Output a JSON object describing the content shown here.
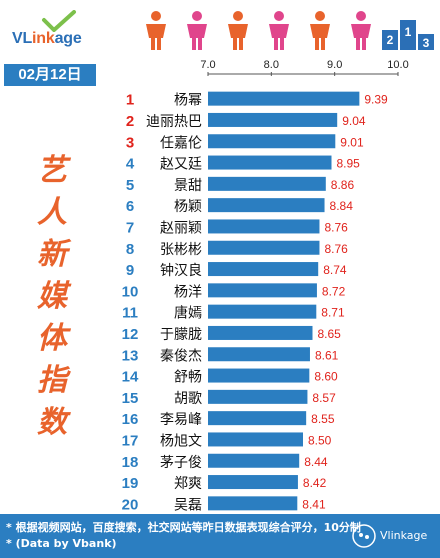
{
  "brand": {
    "name": "VLinkage"
  },
  "header": {
    "date": "02月12日"
  },
  "side_title": [
    "艺",
    "人",
    "新",
    "媒",
    "体",
    "指",
    "数"
  ],
  "footer": {
    "note1": "* 根据视频网站，百度搜索，社交网站等昨日数据表现综合评分，10分制",
    "note2": "* (Data by Vbank)"
  },
  "watermark": {
    "text": "Vlinkage"
  },
  "colors": {
    "bar": "#2b7ec1",
    "value": "#e0231c",
    "rank_top": "#e0231c",
    "rank": "#2b7ec1",
    "accent": "#e8632c",
    "figure_orange": "#e8632c",
    "figure_pink": "#e0458c"
  },
  "chart_data": {
    "type": "bar",
    "orientation": "horizontal",
    "title": "",
    "xlabel": "",
    "ylabel": "",
    "xlim": [
      7.0,
      10.0
    ],
    "xticks": [
      "7.0",
      "8.0",
      "9.0",
      "10.0"
    ],
    "grid": false,
    "ranks": [
      "1",
      "2",
      "3",
      "4",
      "5",
      "6",
      "7",
      "8",
      "9",
      "10",
      "11",
      "12",
      "13",
      "14",
      "15",
      "16",
      "17",
      "18",
      "19",
      "20"
    ],
    "categories": [
      "杨幂",
      "迪丽热巴",
      "任嘉伦",
      "赵又廷",
      "景甜",
      "杨颖",
      "赵丽颖",
      "张彬彬",
      "钟汉良",
      "杨洋",
      "唐嫣",
      "于朦胧",
      "秦俊杰",
      "舒畅",
      "胡歌",
      "李易峰",
      "杨旭文",
      "茅子俊",
      "郑爽",
      "吴磊"
    ],
    "values": [
      9.39,
      9.04,
      9.01,
      8.95,
      8.86,
      8.84,
      8.76,
      8.76,
      8.74,
      8.72,
      8.71,
      8.65,
      8.61,
      8.6,
      8.57,
      8.55,
      8.5,
      8.44,
      8.42,
      8.41
    ],
    "value_labels": [
      "9.39",
      "9.04",
      "9.01",
      "8.95",
      "8.86",
      "8.84",
      "8.76",
      "8.76",
      "8.74",
      "8.72",
      "8.71",
      "8.65",
      "8.61",
      "8.60",
      "8.57",
      "8.55",
      "8.50",
      "8.44",
      "8.42",
      "8.41"
    ]
  }
}
